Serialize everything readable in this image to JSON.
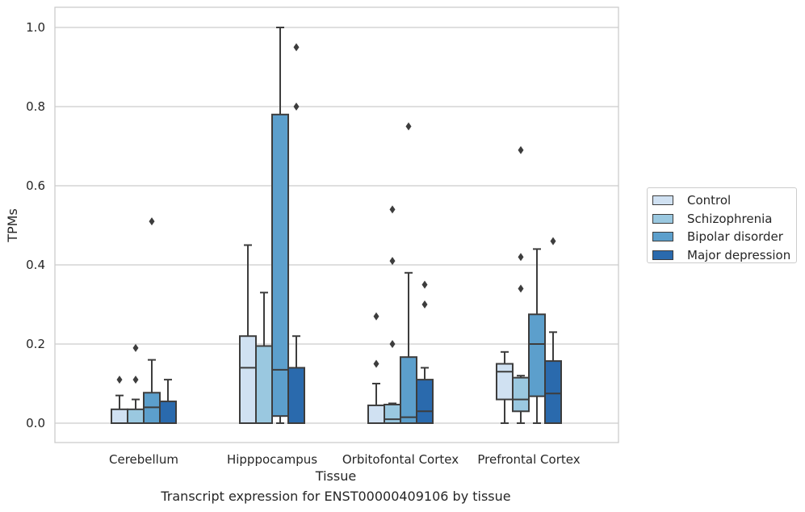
{
  "caption": "Transcript expression for ENST00000409106 by tissue",
  "chart_data": {
    "type": "boxplot",
    "xlabel": "Tissue",
    "ylabel": "TPMs",
    "ylim": [
      -0.05,
      1.05
    ],
    "yticks": [
      "0.0",
      "0.2",
      "0.4",
      "0.6",
      "0.8",
      "1.0"
    ],
    "grid": true,
    "legend_position": "right",
    "categories": [
      "Cerebellum",
      "Hipppocampus",
      "Orbitofontal Cortex",
      "Prefrontal Cortex"
    ],
    "series": [
      {
        "name": "Control",
        "color": "#d0e1f2",
        "boxes": [
          {
            "whisker_low": 0.0,
            "q1": 0.0,
            "median": 0.0,
            "q3": 0.035,
            "whisker_high": 0.07,
            "outliers": [
              0.11
            ]
          },
          {
            "whisker_low": 0.0,
            "q1": 0.0,
            "median": 0.14,
            "q3": 0.22,
            "whisker_high": 0.45,
            "outliers": []
          },
          {
            "whisker_low": 0.0,
            "q1": 0.0,
            "median": 0.0,
            "q3": 0.045,
            "whisker_high": 0.1,
            "outliers": [
              0.15,
              0.27
            ]
          },
          {
            "whisker_low": 0.0,
            "q1": 0.06,
            "median": 0.13,
            "q3": 0.15,
            "whisker_high": 0.18,
            "outliers": []
          }
        ]
      },
      {
        "name": "Schizophrenia",
        "color": "#9ac8e0",
        "boxes": [
          {
            "whisker_low": 0.0,
            "q1": 0.0,
            "median": 0.0,
            "q3": 0.035,
            "whisker_high": 0.06,
            "outliers": [
              0.11,
              0.19
            ]
          },
          {
            "whisker_low": 0.0,
            "q1": 0.0,
            "median": 0.0,
            "q3": 0.195,
            "whisker_high": 0.33,
            "outliers": []
          },
          {
            "whisker_low": 0.0,
            "q1": 0.0,
            "median": 0.01,
            "q3": 0.047,
            "whisker_high": 0.05,
            "outliers": [
              0.2,
              0.41,
              0.54
            ]
          },
          {
            "whisker_low": 0.0,
            "q1": 0.03,
            "median": 0.06,
            "q3": 0.115,
            "whisker_high": 0.12,
            "outliers": [
              0.34,
              0.42,
              0.69
            ]
          }
        ]
      },
      {
        "name": "Bipolar disorder",
        "color": "#5c9fcc",
        "boxes": [
          {
            "whisker_low": 0.0,
            "q1": 0.0,
            "median": 0.04,
            "q3": 0.077,
            "whisker_high": 0.16,
            "outliers": [
              0.51
            ]
          },
          {
            "whisker_low": 0.0,
            "q1": 0.018,
            "median": 0.135,
            "q3": 0.78,
            "whisker_high": 1.0,
            "outliers": []
          },
          {
            "whisker_low": 0.0,
            "q1": 0.0,
            "median": 0.015,
            "q3": 0.167,
            "whisker_high": 0.38,
            "outliers": [
              0.75
            ]
          },
          {
            "whisker_low": 0.0,
            "q1": 0.068,
            "median": 0.2,
            "q3": 0.275,
            "whisker_high": 0.44,
            "outliers": []
          }
        ]
      },
      {
        "name": "Major depression",
        "color": "#2a6aad",
        "boxes": [
          {
            "whisker_low": 0.0,
            "q1": 0.0,
            "median": 0.0,
            "q3": 0.055,
            "whisker_high": 0.11,
            "outliers": []
          },
          {
            "whisker_low": 0.0,
            "q1": 0.0,
            "median": 0.0,
            "q3": 0.14,
            "whisker_high": 0.22,
            "outliers": [
              0.8,
              0.95
            ]
          },
          {
            "whisker_low": 0.0,
            "q1": 0.0,
            "median": 0.03,
            "q3": 0.11,
            "whisker_high": 0.14,
            "outliers": [
              0.3,
              0.35
            ]
          },
          {
            "whisker_low": 0.0,
            "q1": 0.0,
            "median": 0.075,
            "q3": 0.157,
            "whisker_high": 0.23,
            "outliers": [
              0.46
            ]
          }
        ]
      }
    ]
  }
}
